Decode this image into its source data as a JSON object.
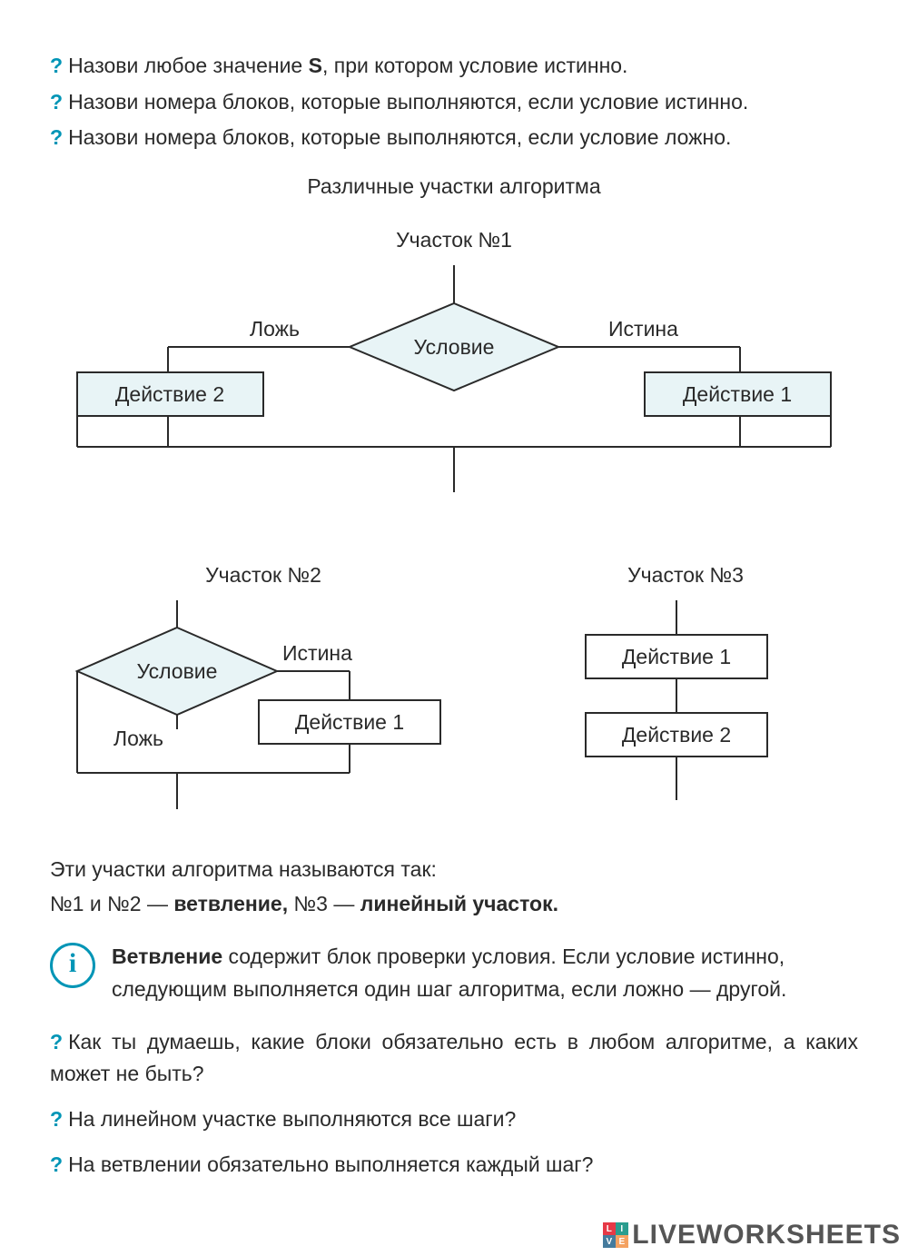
{
  "questions_top": [
    "Назови любое значение <b>S</b>, при котором условие истинно.",
    "Назови номера блоков, которые выполняются, если условие истинно.",
    "Назови номера блоков, которые выполняются, если условие ложно."
  ],
  "heading_main": "Различные участки алгоритма",
  "section1": {
    "title": "Участок №1",
    "diamond": "Условие",
    "left": "Действие 2",
    "right": "Действие 1",
    "lbl_false": "Ложь",
    "lbl_true": "Истина"
  },
  "section2": {
    "title": "Участок №2",
    "diamond": "Условие",
    "action": "Действие 1",
    "lbl_false": "Ложь",
    "lbl_true": "Истина"
  },
  "section3": {
    "title": "Участок №3",
    "a1": "Действие 1",
    "a2": "Действие 2"
  },
  "names_intro": "Эти участки алгоритма называются так:",
  "names_line": "№1 и №2 — <b>ветвление,</b> №3 — <b>линейный участок.</b>",
  "info": "<b>Ветвление</b> содержит блок проверки условия. Если условие истинно, следующим выполняется один шаг алгоритма, если ложно — другой.",
  "questions_bottom": [
    "Как ты думаешь, какие блоки обязательно есть в любом алгоритме, а каких может не быть?",
    "На линейном участке выполняются все шаги?",
    "На ветвлении обязательно выполняется каждый шаг?"
  ],
  "watermark": "LIVEWORKSHEETS",
  "colors": {
    "stroke": "#2a2a2a",
    "fill_light": "#e8f4f6",
    "fill_white": "#ffffff",
    "q": "#0095b6"
  }
}
